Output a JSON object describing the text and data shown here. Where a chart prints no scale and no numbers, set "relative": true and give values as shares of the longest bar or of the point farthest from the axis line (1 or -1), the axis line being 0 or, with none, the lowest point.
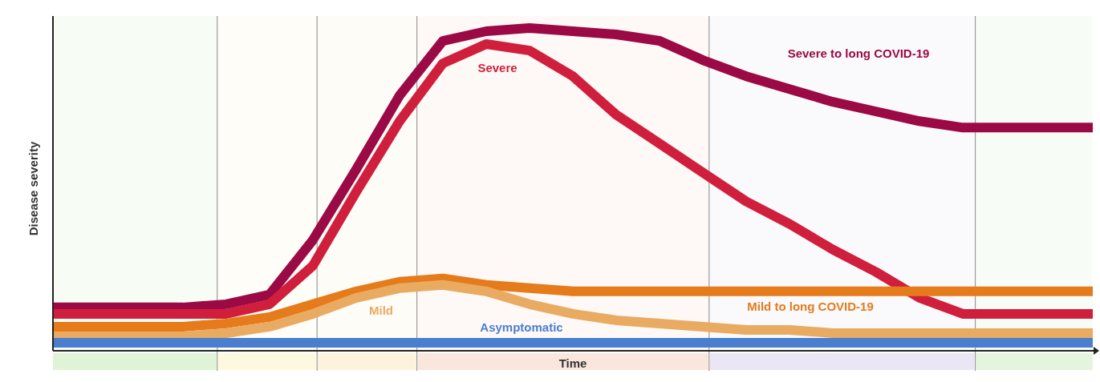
{
  "chart_data": {
    "type": "line",
    "relative": true,
    "xlabel": "Time",
    "ylabel": "Disease severity",
    "categories": [
      null,
      null,
      null,
      null,
      null,
      null,
      null,
      null,
      null,
      null,
      null,
      null,
      null,
      null,
      null,
      null,
      null,
      null,
      null,
      null,
      null,
      null,
      null,
      null,
      null
    ],
    "line_style": "solid",
    "series": [
      {
        "name": "Severe to long COVID-19",
        "color": "#9b0a45",
        "values": [
          0.13,
          0.13,
          0.13,
          0.13,
          0.14,
          0.17,
          0.34,
          0.56,
          0.79,
          0.96,
          0.99,
          1.0,
          0.99,
          0.98,
          0.96,
          0.9,
          0.85,
          0.81,
          0.77,
          0.74,
          0.71,
          0.69,
          0.69,
          0.69,
          0.69
        ]
      },
      {
        "name": "Severe",
        "color": "#d01f3c",
        "values": [
          0.11,
          0.11,
          0.11,
          0.11,
          0.11,
          0.14,
          0.26,
          0.49,
          0.71,
          0.89,
          0.95,
          0.93,
          0.85,
          0.73,
          0.64,
          0.55,
          0.46,
          0.39,
          0.31,
          0.24,
          0.16,
          0.11,
          0.11,
          0.11,
          0.11
        ]
      },
      {
        "name": "Mild to long COVID-19",
        "color": "#e57b1a",
        "values": [
          0.07,
          0.07,
          0.07,
          0.07,
          0.08,
          0.1,
          0.14,
          0.18,
          0.21,
          0.22,
          0.2,
          0.19,
          0.18,
          0.18,
          0.18,
          0.18,
          0.18,
          0.18,
          0.18,
          0.18,
          0.18,
          0.18,
          0.18,
          0.18,
          0.18
        ]
      },
      {
        "name": "Mild",
        "color": "#e9aa62",
        "values": [
          0.04,
          0.04,
          0.04,
          0.04,
          0.05,
          0.07,
          0.11,
          0.16,
          0.19,
          0.2,
          0.18,
          0.14,
          0.11,
          0.09,
          0.08,
          0.07,
          0.06,
          0.06,
          0.05,
          0.05,
          0.05,
          0.05,
          0.05,
          0.05,
          0.05
        ]
      },
      {
        "name": "Asymptomatic",
        "color": "#4a7fcf",
        "values": [
          0.02,
          0.02,
          0.02,
          0.02,
          0.02,
          0.02,
          0.02,
          0.02,
          0.02,
          0.02,
          0.02,
          0.02,
          0.02,
          0.02,
          0.02,
          0.02,
          0.02,
          0.02,
          0.02,
          0.02,
          0.02,
          0.02,
          0.02,
          0.02,
          0.02
        ]
      }
    ]
  }
}
